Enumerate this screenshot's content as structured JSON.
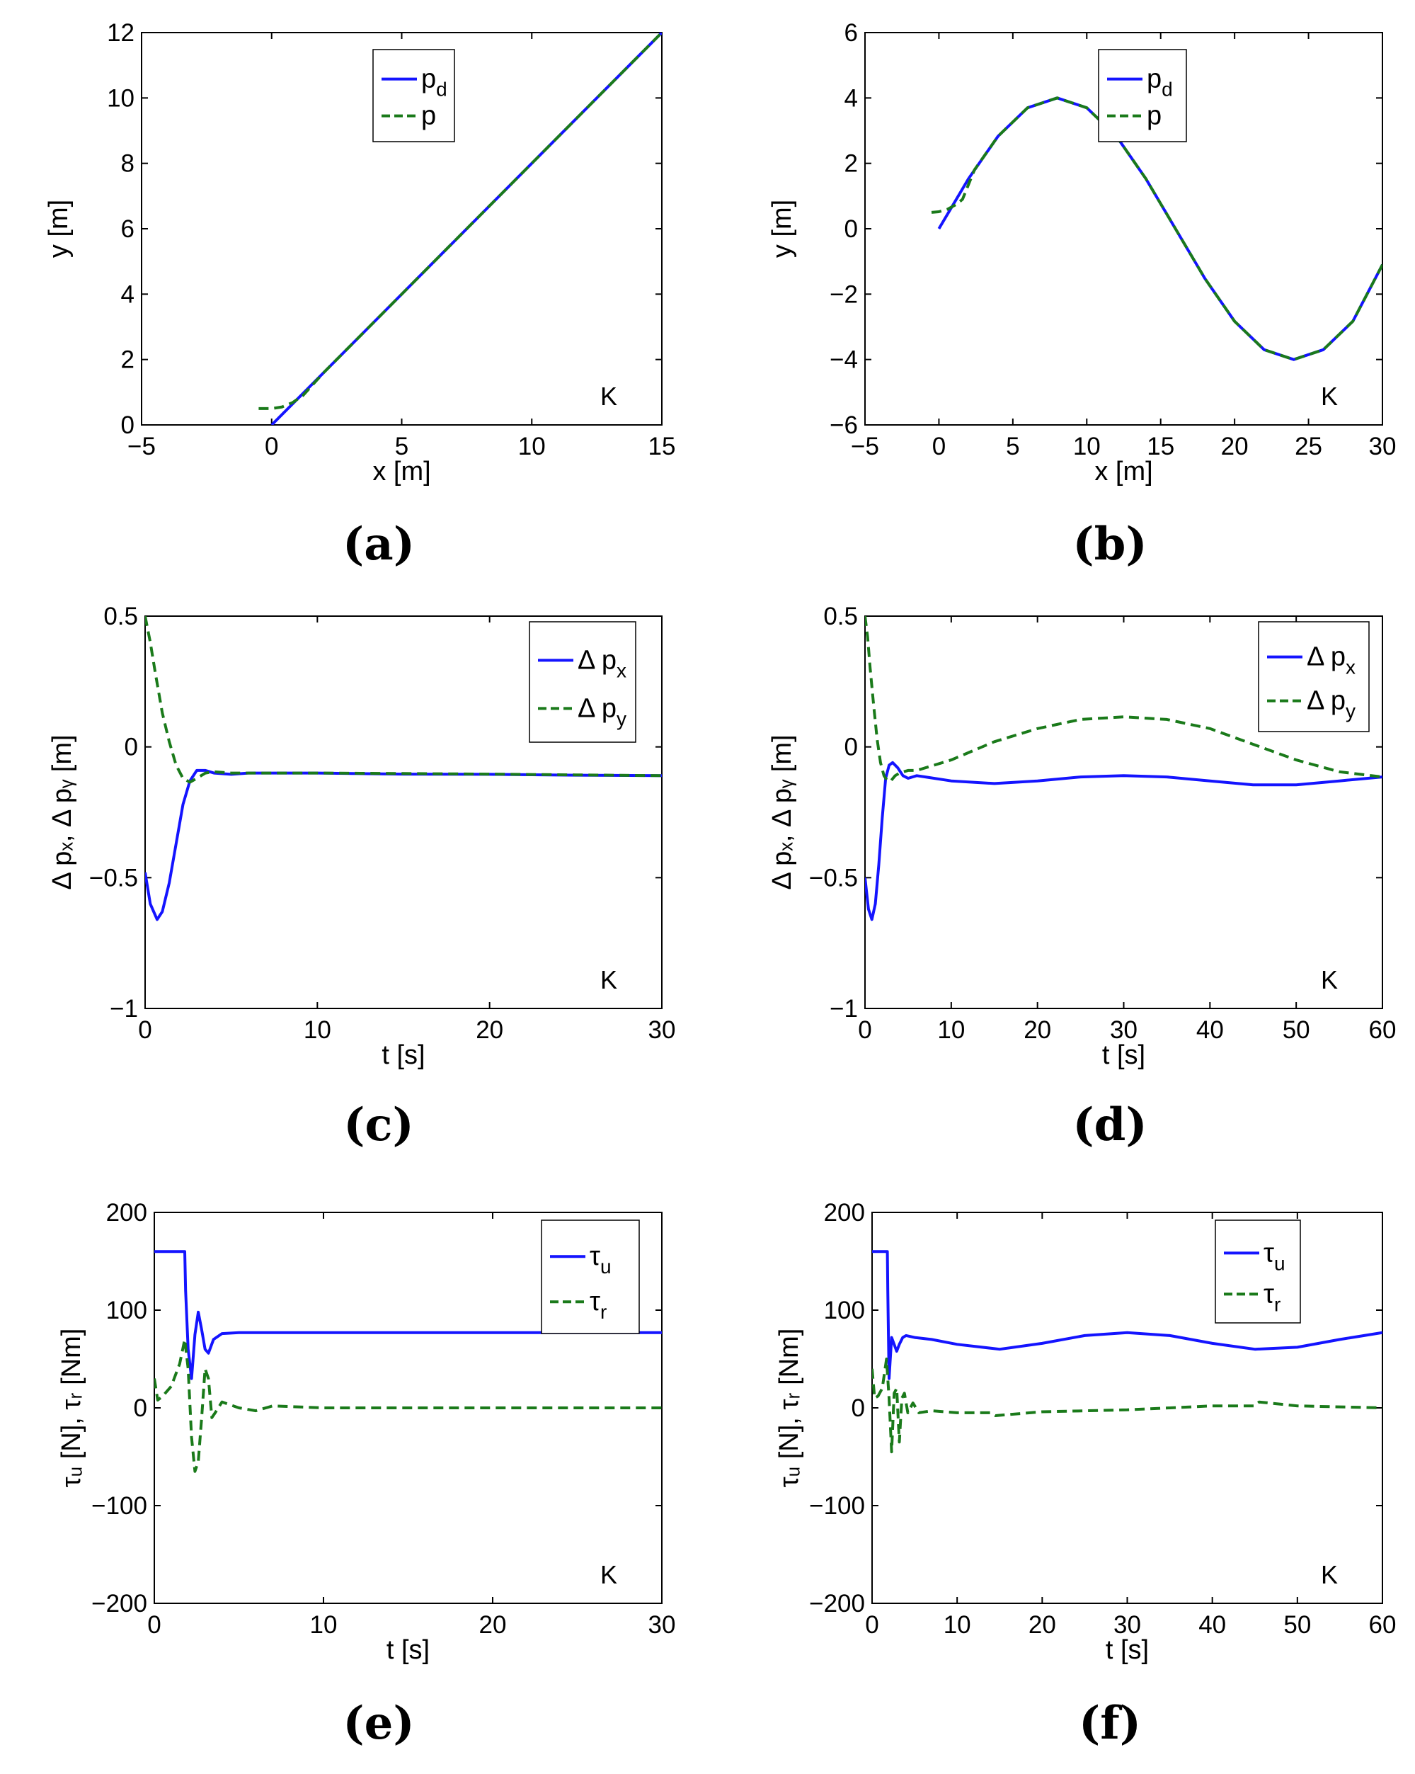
{
  "figure": {
    "colors": {
      "blue": "#1414ff",
      "green": "#1a7a1a"
    },
    "chart_data": [
      {
        "id": "a",
        "type": "line",
        "panel_label_text": "a",
        "xlabel": "x [m]",
        "ylabel": "y [m]",
        "xlim": [
          -5,
          15
        ],
        "ylim": [
          0,
          12
        ],
        "xticks": [
          -5,
          0,
          5,
          10,
          15
        ],
        "yticks": [
          0,
          2,
          4,
          6,
          8,
          10,
          12
        ],
        "xtick_labels": [
          "−5",
          "0",
          "5",
          "10",
          "15"
        ],
        "ytick_labels": [
          "0",
          "2",
          "4",
          "6",
          "8",
          "10",
          "12"
        ],
        "annotation": "K",
        "legend": [
          "p",
          "p"
        ],
        "legend_sub": [
          "d",
          ""
        ],
        "series": [
          {
            "name": "p_d",
            "color": "#1414ff",
            "style": "solid",
            "x": [
              0,
              15
            ],
            "y": [
              0,
              12
            ]
          },
          {
            "name": "p",
            "color": "#1a7a1a",
            "style": "dashed",
            "x": [
              -0.5,
              0,
              0.4,
              0.8,
              1.2,
              2,
              4,
              8,
              12,
              15
            ],
            "y": [
              0.5,
              0.5,
              0.55,
              0.68,
              0.9,
              1.6,
              3.2,
              6.4,
              9.6,
              12
            ]
          }
        ]
      },
      {
        "id": "b",
        "type": "line",
        "panel_label_text": "b",
        "xlabel": "x [m]",
        "ylabel": "y [m]",
        "xlim": [
          -5,
          30
        ],
        "ylim": [
          -6,
          6
        ],
        "xticks": [
          -5,
          0,
          5,
          10,
          15,
          20,
          25,
          30
        ],
        "yticks": [
          -6,
          -4,
          -2,
          0,
          2,
          4,
          6
        ],
        "xtick_labels": [
          "−5",
          "0",
          "5",
          "10",
          "15",
          "20",
          "25",
          "30"
        ],
        "ytick_labels": [
          "−6",
          "−4",
          "−2",
          "0",
          "2",
          "4",
          "6"
        ],
        "annotation": "K",
        "legend": [
          "p",
          "p"
        ],
        "legend_sub": [
          "d",
          ""
        ],
        "series": [
          {
            "name": "p_d",
            "color": "#1414ff",
            "style": "solid",
            "x": [
              0,
              2,
              4,
              6,
              8,
              10,
              12,
              14,
              16,
              18,
              20,
              22,
              24,
              26,
              28,
              30
            ],
            "y": [
              0,
              1.53,
              2.83,
              3.7,
              4.0,
              3.7,
              2.83,
              1.53,
              0,
              -1.53,
              -2.83,
              -3.7,
              -4.0,
              -3.7,
              -2.83,
              -1.1
            ]
          },
          {
            "name": "p",
            "color": "#1a7a1a",
            "style": "dashed",
            "x": [
              -0.5,
              0,
              0.6,
              1.2,
              1.6,
              2.4,
              4,
              6,
              8,
              10,
              12,
              14,
              16,
              18,
              20,
              22,
              24,
              26,
              28,
              30
            ],
            "y": [
              0.5,
              0.52,
              0.6,
              0.75,
              0.9,
              1.8,
              2.83,
              3.7,
              4.0,
              3.7,
              2.83,
              1.53,
              0,
              -1.53,
              -2.83,
              -3.7,
              -4.0,
              -3.7,
              -2.83,
              -1.1
            ]
          }
        ]
      },
      {
        "id": "c",
        "type": "line",
        "panel_label_text": "c",
        "xlabel": "t [s]",
        "ylabel": "Δ pₓ, Δ pᵧ [m]",
        "xlim": [
          0,
          30
        ],
        "ylim": [
          -1,
          0.5
        ],
        "xticks": [
          0,
          10,
          20,
          30
        ],
        "yticks": [
          -1,
          -0.5,
          0,
          0.5
        ],
        "xtick_labels": [
          "0",
          "10",
          "20",
          "30"
        ],
        "ytick_labels": [
          "−1",
          "−0.5",
          "0",
          "0.5"
        ],
        "annotation": "K",
        "legend": [
          "Δ p",
          "Δ p"
        ],
        "legend_sub": [
          "x",
          "y"
        ],
        "series": [
          {
            "name": "Δ p_x",
            "color": "#1414ff",
            "style": "solid",
            "x": [
              0,
              0.3,
              0.7,
              1.0,
              1.4,
              1.8,
              2.2,
              2.6,
              3.0,
              3.5,
              4.0,
              5.0,
              6.0,
              8,
              10,
              15,
              20,
              25,
              30
            ],
            "y": [
              -0.48,
              -0.6,
              -0.66,
              -0.63,
              -0.52,
              -0.37,
              -0.22,
              -0.13,
              -0.09,
              -0.09,
              -0.1,
              -0.105,
              -0.1,
              -0.1,
              -0.1,
              -0.104,
              -0.105,
              -0.108,
              -0.11
            ]
          },
          {
            "name": "Δ p_y",
            "color": "#1a7a1a",
            "style": "dashed",
            "x": [
              0,
              0.3,
              0.6,
              1.0,
              1.4,
              1.8,
              2.2,
              2.6,
              3.0,
              3.5,
              4.0,
              5.0,
              6.0,
              10,
              15,
              20,
              25,
              30
            ],
            "y": [
              0.5,
              0.4,
              0.28,
              0.13,
              0.02,
              -0.07,
              -0.12,
              -0.135,
              -0.12,
              -0.1,
              -0.095,
              -0.1,
              -0.1,
              -0.1,
              -0.102,
              -0.104,
              -0.107,
              -0.11
            ]
          }
        ]
      },
      {
        "id": "d",
        "type": "line",
        "panel_label_text": "d",
        "xlabel": "t [s]",
        "ylabel": "Δ pₓ, Δ pᵧ [m]",
        "xlim": [
          0,
          60
        ],
        "ylim": [
          -1,
          0.5
        ],
        "xticks": [
          0,
          10,
          20,
          30,
          40,
          50,
          60
        ],
        "yticks": [
          -1,
          -0.5,
          0,
          0.5
        ],
        "xtick_labels": [
          "0",
          "10",
          "20",
          "30",
          "40",
          "50",
          "60"
        ],
        "ytick_labels": [
          "−1",
          "−0.5",
          "0",
          "0.5"
        ],
        "annotation": "K",
        "legend": [
          "Δ p",
          "Δ p"
        ],
        "legend_sub": [
          "x",
          "y"
        ],
        "series": [
          {
            "name": "Δ p_x",
            "color": "#1414ff",
            "style": "solid",
            "x": [
              0,
              0.4,
              0.8,
              1.2,
              1.6,
              2.0,
              2.4,
              2.8,
              3.2,
              3.8,
              4.4,
              5.0,
              6.0,
              7.0,
              10,
              15,
              20,
              25,
              30,
              35,
              40,
              45,
              50,
              55,
              60
            ],
            "y": [
              -0.5,
              -0.62,
              -0.66,
              -0.6,
              -0.45,
              -0.27,
              -0.12,
              -0.07,
              -0.06,
              -0.08,
              -0.11,
              -0.12,
              -0.11,
              -0.115,
              -0.13,
              -0.14,
              -0.13,
              -0.115,
              -0.11,
              -0.115,
              -0.13,
              -0.145,
              -0.145,
              -0.13,
              -0.115
            ]
          },
          {
            "name": "Δ p_y",
            "color": "#1a7a1a",
            "style": "dashed",
            "x": [
              0,
              0.3,
              0.6,
              1.0,
              1.4,
              1.8,
              2.2,
              2.6,
              3.0,
              3.5,
              4.0,
              5.0,
              6.0,
              8,
              10,
              15,
              20,
              25,
              30,
              35,
              40,
              45,
              50,
              55,
              60
            ],
            "y": [
              0.5,
              0.42,
              0.3,
              0.16,
              0.03,
              -0.06,
              -0.11,
              -0.13,
              -0.13,
              -0.11,
              -0.1,
              -0.09,
              -0.09,
              -0.07,
              -0.05,
              0.02,
              0.07,
              0.105,
              0.115,
              0.105,
              0.07,
              0.01,
              -0.05,
              -0.095,
              -0.115
            ]
          }
        ]
      },
      {
        "id": "e",
        "type": "line",
        "panel_label_text": "e",
        "xlabel": "t [s]",
        "ylabel": "τᵤ [N], τᵣ [Nm]",
        "xlim": [
          0,
          30
        ],
        "ylim": [
          -200,
          200
        ],
        "xticks": [
          0,
          10,
          20,
          30
        ],
        "yticks": [
          -200,
          -100,
          0,
          100,
          200
        ],
        "xtick_labels": [
          "0",
          "10",
          "20",
          "30"
        ],
        "ytick_labels": [
          "−200",
          "−100",
          "0",
          "100",
          "200"
        ],
        "annotation": "K",
        "legend": [
          "τ",
          "τ"
        ],
        "legend_sub": [
          "u",
          "r"
        ],
        "series": [
          {
            "name": "τ_u",
            "color": "#1414ff",
            "style": "solid",
            "x": [
              0,
              1.8,
              1.85,
              2.0,
              2.2,
              2.4,
              2.6,
              2.8,
              3.0,
              3.2,
              3.5,
              4.0,
              5.0,
              10,
              20,
              30
            ],
            "y": [
              160,
              160,
              120,
              60,
              30,
              75,
              98,
              80,
              60,
              56,
              70,
              76,
              77,
              77,
              77,
              77
            ]
          },
          {
            "name": "τ_r",
            "color": "#1a7a1a",
            "style": "dashed",
            "x": [
              0,
              0.2,
              0.5,
              1.0,
              1.5,
              1.8,
              2.0,
              2.2,
              2.4,
              2.6,
              2.8,
              3.0,
              3.2,
              3.4,
              3.6,
              4.0,
              5.0,
              6.0,
              7.0,
              10,
              20,
              30
            ],
            "y": [
              30,
              8,
              12,
              22,
              45,
              70,
              40,
              -30,
              -65,
              -55,
              -10,
              40,
              30,
              -10,
              -5,
              6,
              0,
              -3,
              2,
              0,
              0,
              0
            ]
          }
        ]
      },
      {
        "id": "f",
        "type": "line",
        "panel_label_text": "f",
        "xlabel": "t [s]",
        "ylabel": "τᵤ [N], τᵣ [Nm]",
        "xlim": [
          0,
          60
        ],
        "ylim": [
          -200,
          200
        ],
        "xticks": [
          0,
          10,
          20,
          30,
          40,
          50,
          60
        ],
        "yticks": [
          -200,
          -100,
          0,
          100,
          200
        ],
        "xtick_labels": [
          "0",
          "10",
          "20",
          "30",
          "40",
          "50",
          "60"
        ],
        "ytick_labels": [
          "−200",
          "−100",
          "0",
          "100",
          "200"
        ],
        "annotation": "K",
        "legend": [
          "τ",
          "τ"
        ],
        "legend_sub": [
          "u",
          "r"
        ],
        "series": [
          {
            "name": "τ_u",
            "color": "#1414ff",
            "style": "solid",
            "x": [
              0,
              1.8,
              1.85,
              2.0,
              2.3,
              2.6,
              2.9,
              3.2,
              3.6,
              4.0,
              5,
              7,
              10,
              15,
              20,
              25,
              30,
              35,
              40,
              45,
              50,
              55,
              60
            ],
            "y": [
              160,
              160,
              120,
              30,
              72,
              65,
              58,
              65,
              72,
              74,
              72,
              70,
              65,
              60,
              66,
              74,
              77,
              74,
              66,
              60,
              62,
              70,
              77
            ]
          },
          {
            "name": "τ_r",
            "color": "#1a7a1a",
            "style": "dashed",
            "x": [
              0,
              0.3,
              0.7,
              1.2,
              1.7,
              2.0,
              2.3,
              2.6,
              2.9,
              3.2,
              3.5,
              3.8,
              4.2,
              4.8,
              5.5,
              7,
              10,
              14,
              14.5,
              20,
              30,
              40,
              45,
              45.5,
              50,
              60
            ],
            "y": [
              40,
              10,
              12,
              20,
              50,
              10,
              -45,
              15,
              20,
              -35,
              10,
              15,
              -5,
              5,
              -5,
              -3,
              -5,
              -5,
              -8,
              -4,
              -2,
              2,
              2,
              6,
              2,
              0
            ]
          }
        ]
      }
    ]
  }
}
